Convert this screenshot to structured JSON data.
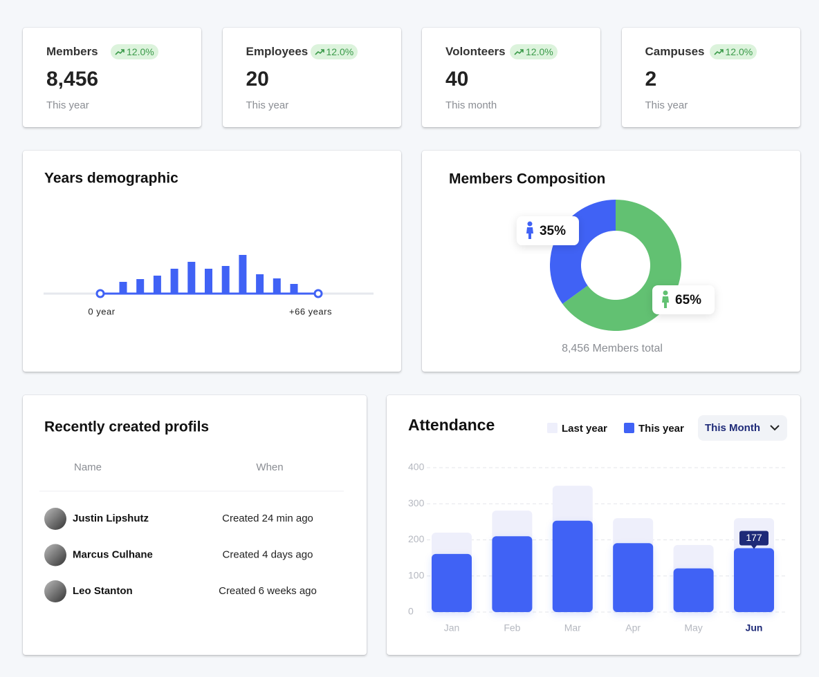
{
  "cards": [
    {
      "label": "Members",
      "change": "12.0%",
      "value": "8,456",
      "period": "This year"
    },
    {
      "label": "Employees",
      "change": "12.0%",
      "value": "20",
      "period": "This year"
    },
    {
      "label": "Volonteers",
      "change": "12.0%",
      "value": "40",
      "period": "This month"
    },
    {
      "label": "Campuses",
      "change": "12.0%",
      "value": "2",
      "period": "This year"
    }
  ],
  "profiles": {
    "title": "Recently created profils",
    "columns": [
      "Name",
      "When"
    ],
    "rows": [
      [
        "Justin Lipshutz",
        "Created 24 min ago"
      ],
      [
        "Marcus Culhane",
        "Created 4 days ago"
      ],
      [
        "Leo Stanton",
        "Created 6 weeks ago"
      ]
    ]
  },
  "chart_data": [
    {
      "type": "bar",
      "title": "Years demographic",
      "values": [
        17,
        21,
        26,
        36,
        46,
        36,
        40,
        56,
        28,
        22,
        14
      ],
      "color": "#4062f5",
      "axis_labels": [
        "0 year",
        "+66 years"
      ]
    },
    {
      "type": "donut",
      "title": "Members Composition",
      "subtitle": "8,456 Members total",
      "values": [
        65,
        35
      ],
      "value_labels": [
        "65%",
        "35%"
      ],
      "colors": [
        "#62c172",
        "#4062f5"
      ]
    },
    {
      "type": "bar",
      "title": "Attendance",
      "categories": [
        "Jan",
        "Feb",
        "Mar",
        "Apr",
        "May",
        "Jun"
      ],
      "series": [
        {
          "name": "Last year",
          "color": "#eeeffb",
          "values": [
            220,
            281,
            350,
            260,
            186,
            260
          ]
        },
        {
          "name": "This year",
          "color": "#4062f5",
          "values": [
            161,
            210,
            253,
            191,
            121,
            177
          ]
        }
      ],
      "ylim": [
        0,
        400
      ],
      "yticks": [
        0,
        100,
        200,
        300,
        400
      ],
      "grid": true,
      "highlight": "Jun",
      "period_filter": "This Month"
    }
  ]
}
